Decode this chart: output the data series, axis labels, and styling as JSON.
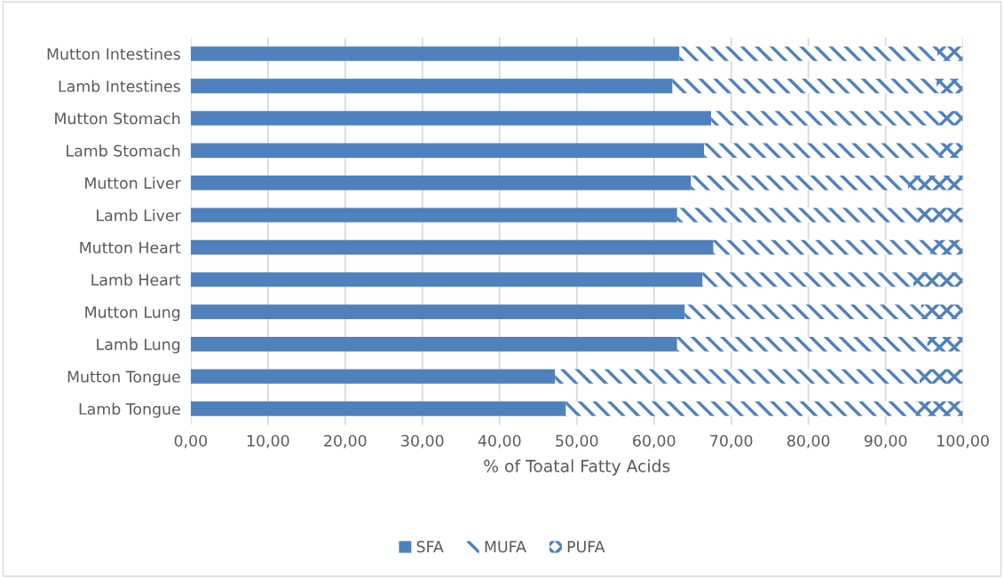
{
  "chart_data": {
    "type": "bar",
    "orientation": "horizontal",
    "stacked": true,
    "xlabel": "% of Toatal Fatty Acids",
    "categories": [
      "Mutton Intestines",
      "Lamb Intestines",
      "Mutton Stomach",
      "Lamb Stomach",
      "Mutton Liver",
      "Lamb Liver",
      "Mutton Heart",
      "Lamb Heart",
      "Mutton Lung",
      "Lamb Lung",
      "Mutton Tongue",
      "Lamb Tongue"
    ],
    "series": [
      {
        "name": "SFA",
        "color": "#4f81bd",
        "values": [
          63.3,
          62.4,
          67.4,
          66.5,
          64.8,
          63.0,
          67.7,
          66.3,
          64.0,
          63.0,
          47.2,
          48.6
        ]
      },
      {
        "name": "MUFA",
        "color": "#4f81bd",
        "values": [
          33.4,
          34.2,
          29.5,
          30.4,
          28.1,
          31.0,
          28.1,
          27.3,
          30.6,
          32.4,
          47.2,
          45.3
        ]
      },
      {
        "name": "PUFA",
        "color": "#4f81bd",
        "values": [
          3.3,
          3.4,
          3.1,
          3.1,
          7.1,
          6.0,
          4.2,
          6.4,
          5.4,
          4.6,
          5.6,
          6.1
        ]
      }
    ],
    "xlim": [
      0,
      100
    ],
    "xticks": [
      {
        "value": 0,
        "label": "0,00"
      },
      {
        "value": 10,
        "label": "10,00"
      },
      {
        "value": 20,
        "label": "20,00"
      },
      {
        "value": 30,
        "label": "30,00"
      },
      {
        "value": 40,
        "label": "40,00"
      },
      {
        "value": 50,
        "label": "50,00"
      },
      {
        "value": 60,
        "label": "60,00"
      },
      {
        "value": 70,
        "label": "70,00"
      },
      {
        "value": 80,
        "label": "80,00"
      },
      {
        "value": 90,
        "label": "90,00"
      },
      {
        "value": 100,
        "label": "100,00"
      }
    ],
    "grid": "x",
    "legend": "bottom"
  }
}
